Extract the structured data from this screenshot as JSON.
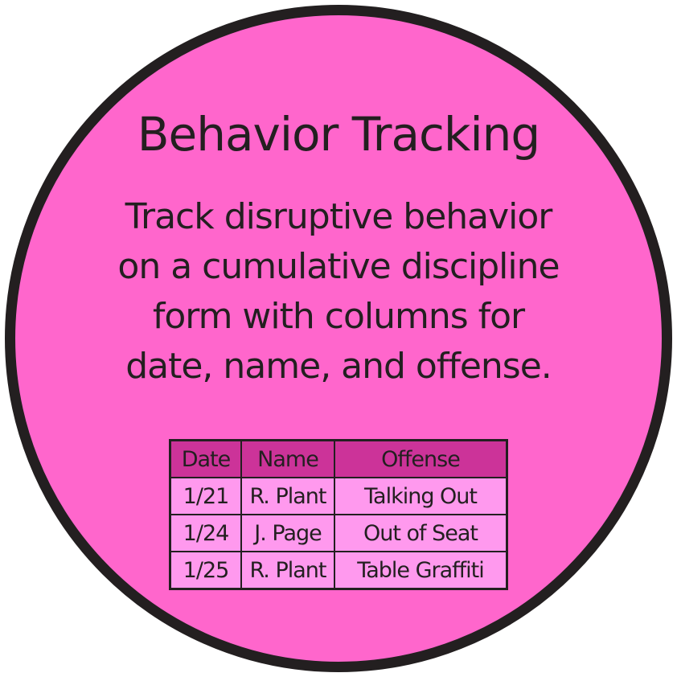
{
  "title": "Behavior Tracking",
  "description_lines": [
    "Track disruptive behavior",
    "on a cumulative discipline",
    "form with columns for",
    "date, name, and offense."
  ],
  "table": {
    "headers": [
      "Date",
      "Name",
      "Offense"
    ],
    "rows": [
      [
        "1/21",
        "R. Plant",
        "Talking Out"
      ],
      [
        "1/24",
        "J. Page",
        "Out of Seat"
      ],
      [
        "1/25",
        "R. Plant",
        "Table Graffiti"
      ]
    ]
  },
  "colors": {
    "circle_fill": "#ff66cc",
    "outline": "#231f20",
    "header_fill": "#cc3399",
    "cell_fill": "#ff99ee"
  }
}
